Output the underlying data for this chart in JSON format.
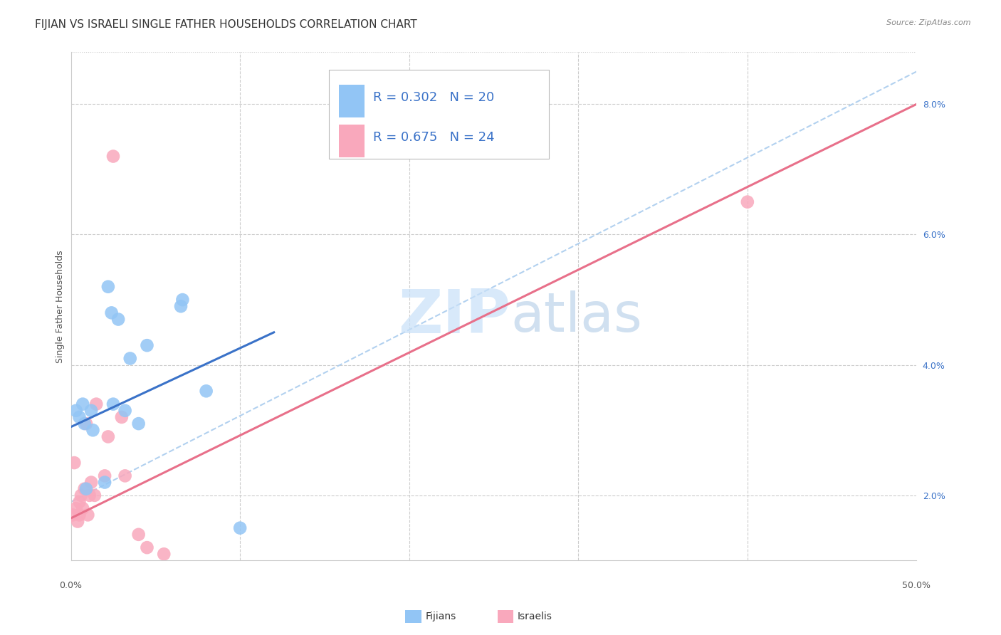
{
  "title": "FIJIAN VS ISRAELI SINGLE FATHER HOUSEHOLDS CORRELATION CHART",
  "source": "Source: ZipAtlas.com",
  "ylabel": "Single Father Households",
  "ylabel_right_values": [
    2.0,
    4.0,
    6.0,
    8.0
  ],
  "xmin": 0.0,
  "xmax": 50.0,
  "ymin": 1.0,
  "ymax": 8.8,
  "fijian_color": "#92C5F5",
  "israeli_color": "#F9A8BC",
  "fijian_line_color": "#3A72C8",
  "israeli_line_color": "#E8708A",
  "dashed_color": "#AACCEE",
  "watermark_zip": "#C8E0F8",
  "watermark_atlas": "#B8D0E8",
  "fijian_points": [
    [
      0.3,
      3.3
    ],
    [
      0.5,
      3.2
    ],
    [
      0.7,
      3.4
    ],
    [
      0.8,
      3.1
    ],
    [
      0.9,
      2.1
    ],
    [
      1.2,
      3.3
    ],
    [
      1.3,
      3.0
    ],
    [
      2.0,
      2.2
    ],
    [
      2.2,
      5.2
    ],
    [
      2.4,
      4.8
    ],
    [
      2.5,
      3.4
    ],
    [
      2.8,
      4.7
    ],
    [
      3.2,
      3.3
    ],
    [
      3.5,
      4.1
    ],
    [
      4.0,
      3.1
    ],
    [
      4.5,
      4.3
    ],
    [
      6.5,
      4.9
    ],
    [
      6.6,
      5.0
    ],
    [
      8.0,
      3.6
    ],
    [
      10.0,
      1.5
    ]
  ],
  "israeli_points": [
    [
      0.1,
      1.7
    ],
    [
      0.2,
      2.5
    ],
    [
      0.3,
      1.8
    ],
    [
      0.4,
      1.6
    ],
    [
      0.5,
      1.7
    ],
    [
      0.5,
      1.9
    ],
    [
      0.6,
      2.0
    ],
    [
      0.7,
      1.8
    ],
    [
      0.8,
      2.1
    ],
    [
      0.9,
      3.1
    ],
    [
      1.0,
      1.7
    ],
    [
      1.1,
      2.0
    ],
    [
      1.2,
      2.2
    ],
    [
      1.4,
      2.0
    ],
    [
      1.5,
      3.4
    ],
    [
      2.0,
      2.3
    ],
    [
      2.2,
      2.9
    ],
    [
      2.5,
      7.2
    ],
    [
      3.0,
      3.2
    ],
    [
      3.2,
      2.3
    ],
    [
      4.0,
      1.4
    ],
    [
      4.5,
      1.2
    ],
    [
      5.5,
      1.1
    ],
    [
      40.0,
      6.5
    ]
  ],
  "fijian_reg_x0": 0.0,
  "fijian_reg_y0": 3.05,
  "fijian_reg_x1": 12.0,
  "fijian_reg_y1": 4.5,
  "israeli_reg_x0": 0.0,
  "israeli_reg_y0": 1.65,
  "israeli_reg_x1": 50.0,
  "israeli_reg_y1": 8.0,
  "dashed_x0": 0.0,
  "dashed_y0": 1.9,
  "dashed_x1": 50.0,
  "dashed_y1": 8.5,
  "grid_color": "#CCCCCC",
  "background_color": "#FFFFFF",
  "title_fontsize": 11,
  "axis_fontsize": 9,
  "tick_fontsize": 9,
  "legend_fontsize": 13,
  "legend_R_color": "#3A72C8",
  "legend_N_color": "#333333"
}
